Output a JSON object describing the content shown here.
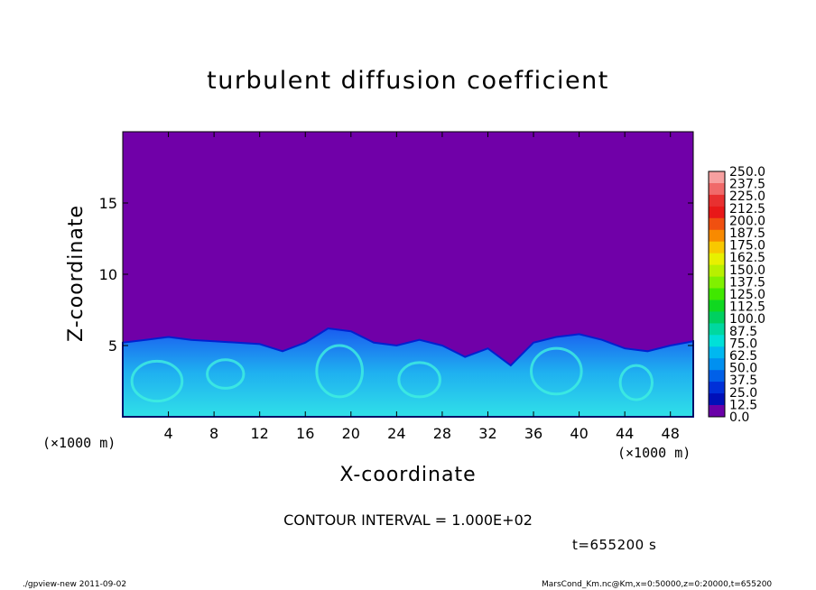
{
  "chart_data": {
    "type": "heatmap",
    "title": "turbulent diffusion coefficient",
    "xlabel": "X-coordinate",
    "ylabel": "Z-coordinate",
    "x_unit": "(×1000 m)",
    "y_unit": "(×1000 m)",
    "xlim": [
      0,
      50
    ],
    "ylim": [
      0,
      20
    ],
    "x_ticks": [
      4,
      8,
      12,
      16,
      20,
      24,
      28,
      32,
      36,
      40,
      44,
      48
    ],
    "y_ticks": [
      5,
      10,
      15
    ],
    "colorbar_levels": [
      "250.0",
      "237.5",
      "225.0",
      "212.5",
      "200.0",
      "187.5",
      "175.0",
      "162.5",
      "150.0",
      "137.5",
      "125.0",
      "112.5",
      "100.0",
      "87.5",
      "75.0",
      "62.5",
      "50.0",
      "37.5",
      "25.0",
      "12.5",
      "0.0"
    ],
    "colorbar_colors": [
      "#f7a0a0",
      "#f06a6a",
      "#e83030",
      "#e81818",
      "#f05010",
      "#f88a00",
      "#f8c800",
      "#e8f000",
      "#b8f000",
      "#80f000",
      "#40e800",
      "#10d820",
      "#00d060",
      "#00d8a0",
      "#00e0d8",
      "#00b8f0",
      "#0090f0",
      "#0060e8",
      "#0030d8",
      "#0010b8",
      "#6a00a8"
    ],
    "background_color": "#7000a8",
    "contour_interval": "CONTOUR INTERVAL = 1.000E+02",
    "time": "t=655200 s",
    "footer_left": "./gpview-new   2011-09-02",
    "footer_right": "MarsCond_Km.nc@Km,x=0:50000,z=0:20000,t=655200"
  }
}
